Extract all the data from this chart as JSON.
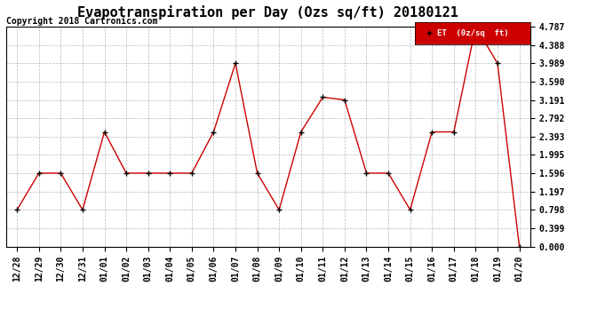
{
  "title": "Evapotranspiration per Day (Ozs sq/ft) 20180121",
  "copyright": "Copyright 2018 Cartronics.com",
  "legend_label": "ET  (0z/sq  ft)",
  "x_labels": [
    "12/28",
    "12/29",
    "12/30",
    "12/31",
    "01/01",
    "01/02",
    "01/03",
    "01/04",
    "01/05",
    "01/06",
    "01/07",
    "01/08",
    "01/09",
    "01/10",
    "01/11",
    "01/12",
    "01/13",
    "01/14",
    "01/15",
    "01/16",
    "01/17",
    "01/18",
    "01/19",
    "01/20"
  ],
  "y_values": [
    0.798,
    1.596,
    1.596,
    0.798,
    2.494,
    1.596,
    1.596,
    1.596,
    1.596,
    2.494,
    3.989,
    1.596,
    0.798,
    2.494,
    3.25,
    3.191,
    1.596,
    1.596,
    0.798,
    2.494,
    2.494,
    4.787,
    3.989,
    0.0
  ],
  "yticks": [
    0.0,
    0.399,
    0.798,
    1.197,
    1.596,
    1.995,
    2.393,
    2.792,
    3.191,
    3.59,
    3.989,
    4.388,
    4.787
  ],
  "line_color": "#cc0000",
  "marker_color": "#000000",
  "background_color": "#ffffff",
  "grid_color": "#999999",
  "legend_bg": "#cc0000",
  "legend_text_color": "#ffffff",
  "title_fontsize": 11,
  "copyright_fontsize": 7,
  "tick_fontsize": 7,
  "ylim": [
    0.0,
    4.787
  ]
}
